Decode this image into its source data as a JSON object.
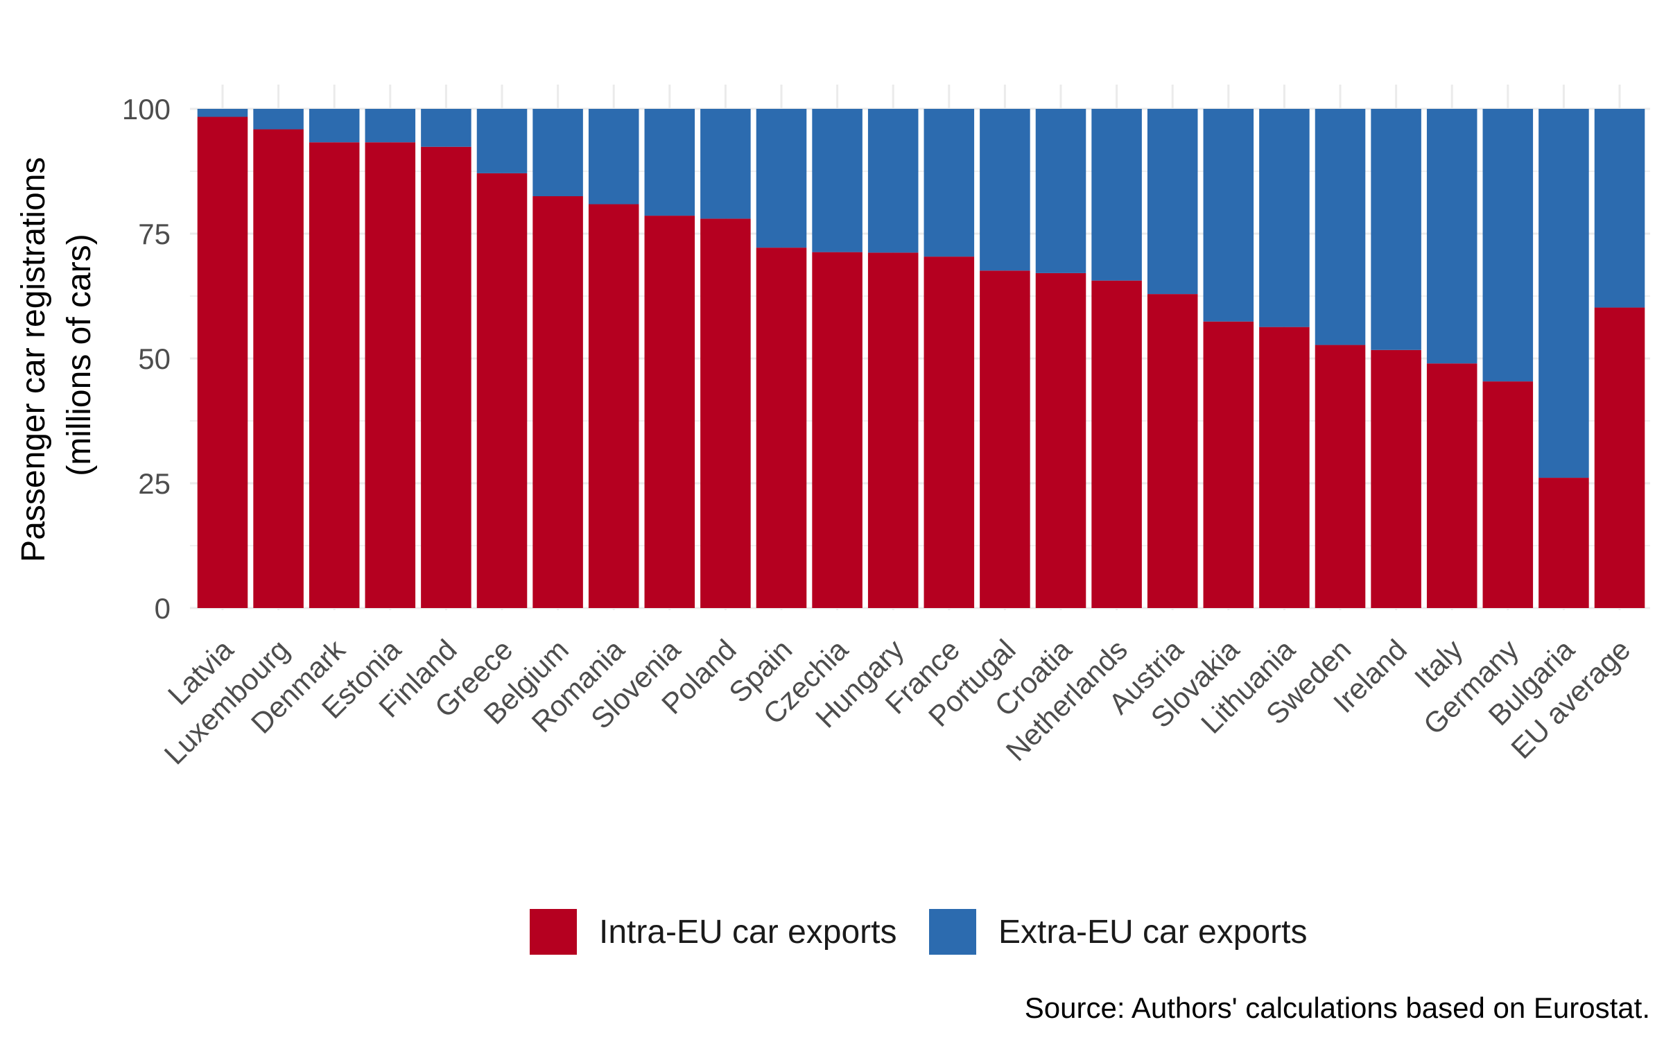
{
  "chart_data": {
    "type": "bar",
    "stacked": true,
    "title": "",
    "ylabel_lines": [
      "Passenger car registrations",
      "(millions of cars)"
    ],
    "xlabel": "",
    "ylim": [
      0,
      100
    ],
    "yticks": [
      "0",
      "25",
      "50",
      "75",
      "100"
    ],
    "grid": true,
    "legend_position": "bottom",
    "categories": [
      "Latvia",
      "Luxembourg",
      "Denmark",
      "Estonia",
      "Finland",
      "Greece",
      "Belgium",
      "Romania",
      "Slovenia",
      "Poland",
      "Spain",
      "Czechia",
      "Hungary",
      "France",
      "Portugal",
      "Croatia",
      "Netherlands",
      "Austria",
      "Slovakia",
      "Lithuania",
      "Sweden",
      "Ireland",
      "Italy",
      "Germany",
      "Bulgaria",
      "EU average"
    ],
    "series": [
      {
        "name": "Intra-EU car exports",
        "color": "#b50020",
        "values": [
          98.4,
          95.9,
          93.3,
          93.3,
          92.4,
          87.1,
          82.5,
          80.9,
          78.6,
          78.0,
          72.2,
          71.3,
          71.2,
          70.4,
          67.6,
          67.1,
          65.6,
          62.9,
          57.4,
          56.3,
          52.7,
          51.7,
          49.0,
          45.4,
          26.1,
          60.2
        ]
      },
      {
        "name": "Extra-EU car exports",
        "color": "#2c6baf",
        "values": [
          1.6,
          4.1,
          6.7,
          6.7,
          7.6,
          12.9,
          17.5,
          19.1,
          21.4,
          22.0,
          27.8,
          28.7,
          28.8,
          29.6,
          32.4,
          32.9,
          34.4,
          37.1,
          42.6,
          43.7,
          47.3,
          48.3,
          51.0,
          54.6,
          73.9,
          39.8
        ]
      }
    ],
    "caption": "Source: Authors' calculations based on Eurostat."
  }
}
